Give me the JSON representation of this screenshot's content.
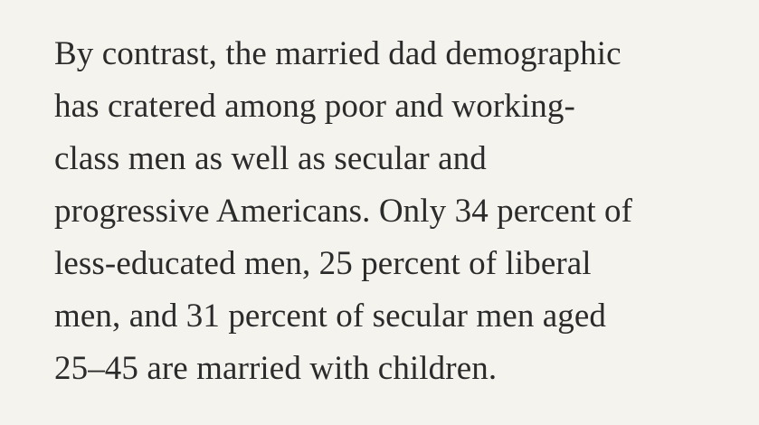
{
  "paragraph": {
    "lines": [
      "By contrast, the married dad demographic",
      "has cratered among poor and working-",
      "class men as well as secular and",
      "progressive Americans. Only 34 percent of",
      "less-educated men, 25 percent of liberal",
      "men, and 31 percent of secular men aged",
      "25–45 are married with children."
    ]
  }
}
